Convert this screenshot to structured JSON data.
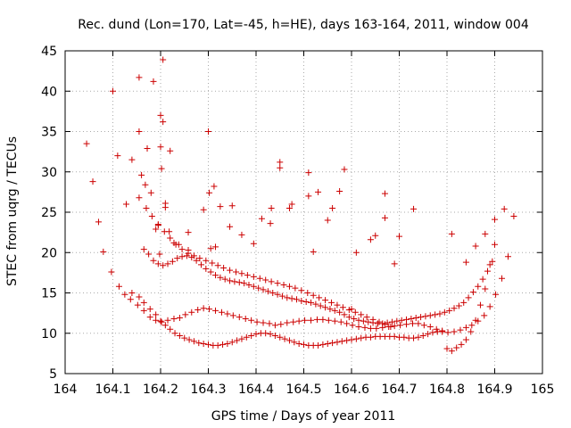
{
  "chart_data": {
    "type": "scatter",
    "title": "Rec. dund (Lon=170, Lat=-45, h=HE), days 163-164, 2011, window 004",
    "xlabel": "GPS time / Days of year 2011",
    "ylabel": "STEC from uqrg / TECUs",
    "xlim": [
      164,
      165
    ],
    "ylim": [
      5,
      45
    ],
    "xticks": [
      "164",
      "164.1",
      "164.2",
      "164.3",
      "164.4",
      "164.5",
      "164.6",
      "164.7",
      "164.8",
      "164.9",
      "165"
    ],
    "yticks": [
      "5",
      "10",
      "15",
      "20",
      "25",
      "30",
      "35",
      "40",
      "45"
    ],
    "grid": true,
    "marker": "+",
    "color": "#cc0000",
    "series": [
      {
        "x": [
          164.045,
          164.058,
          164.07,
          164.08,
          164.097,
          164.1,
          164.11,
          164.128,
          164.14,
          164.155,
          164.172,
          164.185,
          164.2,
          164.205,
          164.113,
          164.125,
          164.137,
          164.152,
          164.165,
          164.178,
          164.19,
          164.202,
          164.215,
          164.228,
          164.24,
          164.252,
          164.265,
          164.278,
          164.29,
          164.302,
          164.315,
          164.328,
          164.34,
          164.352,
          164.365,
          164.378,
          164.39,
          164.402,
          164.415,
          164.428,
          164.44,
          164.452,
          164.465,
          164.478,
          164.49,
          164.502,
          164.515,
          164.528,
          164.54,
          164.552,
          164.565,
          164.578,
          164.59,
          164.602,
          164.615,
          164.628,
          164.64,
          164.652,
          164.665,
          164.678,
          164.69,
          164.702,
          164.715,
          164.728,
          164.74,
          164.752,
          164.765,
          164.778,
          164.79,
          164.802,
          164.815,
          164.828,
          164.84,
          164.852,
          164.865,
          164.878,
          164.89,
          164.902,
          164.915,
          164.928,
          164.94,
          164.14,
          164.155,
          164.165,
          164.178,
          164.19,
          164.2,
          164.21,
          164.22,
          164.23,
          164.24,
          164.25,
          164.26,
          164.27,
          164.28,
          164.29,
          164.3,
          164.31,
          164.32,
          164.33,
          164.34,
          164.35,
          164.36,
          164.37,
          164.38,
          164.39,
          164.4,
          164.41,
          164.42,
          164.43,
          164.44,
          164.45,
          164.46,
          164.47,
          164.48,
          164.49,
          164.5,
          164.51,
          164.52,
          164.53,
          164.54,
          164.55,
          164.56,
          164.57,
          164.58,
          164.59,
          164.6,
          164.61,
          164.62,
          164.63,
          164.64,
          164.65,
          164.66,
          164.67,
          164.68,
          164.69,
          164.7,
          164.71,
          164.72,
          164.73,
          164.74,
          164.75,
          164.76,
          164.77,
          164.78,
          164.79,
          164.8,
          164.81,
          164.82,
          164.83,
          164.84,
          164.85,
          164.86,
          164.87,
          164.88,
          164.89,
          164.9,
          164.165,
          164.175,
          164.185,
          164.195,
          164.205,
          164.215,
          164.225,
          164.235,
          164.245,
          164.255,
          164.265,
          164.275,
          164.285,
          164.295,
          164.305,
          164.315,
          164.325,
          164.335,
          164.345,
          164.355,
          164.365,
          164.375,
          164.385,
          164.395,
          164.405,
          164.415,
          164.425,
          164.435,
          164.445,
          164.455,
          164.465,
          164.475,
          164.485,
          164.495,
          164.505,
          164.515,
          164.525,
          164.535,
          164.545,
          164.555,
          164.565,
          164.575,
          164.585,
          164.595,
          164.605,
          164.615,
          164.625,
          164.635,
          164.645,
          164.655,
          164.665,
          164.675,
          164.685,
          164.695,
          164.705,
          164.715,
          164.725,
          164.735,
          164.745,
          164.755,
          164.765,
          164.775,
          164.785,
          164.795,
          164.805,
          164.815,
          164.825,
          164.835,
          164.845,
          164.855,
          164.865,
          164.875,
          164.885,
          164.895,
          164.155,
          164.17,
          164.182,
          164.195,
          164.208,
          164.22,
          164.232,
          164.245,
          164.258,
          164.27,
          164.282,
          164.295,
          164.308,
          164.32,
          164.332,
          164.345,
          164.358,
          164.37,
          164.382,
          164.395,
          164.408,
          164.42,
          164.432,
          164.445,
          164.458,
          164.47,
          164.482,
          164.495,
          164.508,
          164.52,
          164.532,
          164.545,
          164.558,
          164.57,
          164.582,
          164.595,
          164.608,
          164.62,
          164.632,
          164.645,
          164.658,
          164.67,
          164.682,
          164.155,
          164.16,
          164.168,
          164.18,
          164.19,
          164.198,
          164.205,
          164.21,
          164.218,
          164.228,
          164.238,
          164.258,
          164.29,
          164.302,
          164.312,
          164.325,
          164.345,
          164.37,
          164.395,
          164.412,
          164.432,
          164.45,
          164.475,
          164.51,
          164.53,
          164.56,
          164.575,
          164.585,
          164.61,
          164.64,
          164.67,
          164.7,
          164.73,
          164.81,
          164.84,
          164.86,
          164.88,
          164.9,
          164.92,
          164.2,
          164.202,
          164.195,
          164.21,
          164.22,
          164.258,
          164.3,
          164.305,
          164.315,
          164.35,
          164.43,
          164.45,
          164.47,
          164.51,
          164.52,
          164.55,
          164.6,
          164.65,
          164.67,
          164.69
        ],
        "y": [
          33.5,
          28.8,
          23.8,
          20.1,
          17.6,
          40.0,
          32.0,
          26.0,
          31.5,
          35.0,
          32.9,
          41.2,
          37.0,
          36.2,
          15.8,
          14.8,
          14.2,
          13.5,
          12.8,
          12.0,
          11.6,
          11.4,
          11.6,
          11.8,
          11.9,
          12.3,
          12.6,
          12.9,
          13.1,
          13.0,
          12.8,
          12.6,
          12.4,
          12.2,
          12.0,
          11.8,
          11.6,
          11.4,
          11.3,
          11.2,
          11.0,
          11.1,
          11.3,
          11.4,
          11.5,
          11.6,
          11.6,
          11.7,
          11.7,
          11.6,
          11.5,
          11.4,
          11.2,
          11.0,
          10.8,
          10.7,
          10.6,
          10.6,
          10.7,
          10.8,
          10.9,
          11.0,
          11.1,
          11.2,
          11.2,
          11.0,
          10.8,
          10.5,
          10.3,
          10.1,
          10.2,
          10.4,
          10.7,
          11.0,
          11.5,
          12.2,
          13.3,
          14.8,
          16.8,
          19.5,
          24.5,
          15.0,
          14.5,
          13.8,
          13.0,
          12.3,
          11.5,
          11.0,
          10.5,
          10.0,
          9.7,
          9.4,
          9.2,
          9.0,
          8.8,
          8.7,
          8.6,
          8.5,
          8.5,
          8.6,
          8.7,
          8.9,
          9.1,
          9.3,
          9.5,
          9.7,
          9.9,
          10.0,
          10.0,
          9.9,
          9.7,
          9.5,
          9.3,
          9.1,
          8.9,
          8.7,
          8.6,
          8.5,
          8.5,
          8.5,
          8.6,
          8.7,
          8.8,
          8.9,
          9.0,
          9.1,
          9.2,
          9.3,
          9.4,
          9.5,
          9.5,
          9.6,
          9.6,
          9.6,
          9.6,
          9.6,
          9.5,
          9.5,
          9.4,
          9.4,
          9.5,
          9.7,
          9.9,
          10.1,
          10.2,
          10.2,
          8.1,
          7.8,
          8.2,
          8.6,
          9.2,
          10.2,
          11.6,
          13.5,
          15.5,
          18.5,
          21.0,
          20.4,
          19.8,
          19.0,
          18.6,
          18.4,
          18.6,
          18.9,
          19.3,
          19.5,
          19.6,
          19.4,
          19.0,
          18.5,
          18.0,
          17.6,
          17.2,
          16.9,
          16.7,
          16.5,
          16.4,
          16.3,
          16.2,
          16.0,
          15.8,
          15.6,
          15.4,
          15.2,
          15.0,
          14.8,
          14.6,
          14.4,
          14.3,
          14.2,
          14.0,
          13.9,
          13.8,
          13.6,
          13.4,
          13.2,
          13.0,
          12.8,
          12.6,
          12.3,
          12.0,
          11.8,
          11.6,
          11.5,
          11.4,
          11.3,
          11.2,
          11.2,
          11.3,
          11.4,
          11.5,
          11.6,
          11.7,
          11.8,
          11.9,
          12.0,
          12.1,
          12.2,
          12.3,
          12.4,
          12.6,
          12.8,
          13.1,
          13.4,
          13.8,
          14.4,
          15.1,
          15.8,
          16.7,
          17.7,
          18.9,
          26.8,
          25.5,
          24.5,
          23.4,
          22.6,
          21.8,
          21.0,
          20.4,
          19.9,
          19.6,
          19.3,
          19.0,
          18.7,
          18.4,
          18.1,
          17.8,
          17.6,
          17.4,
          17.2,
          17.0,
          16.8,
          16.6,
          16.4,
          16.2,
          16.0,
          15.8,
          15.6,
          15.3,
          15.0,
          14.7,
          14.4,
          14.1,
          13.8,
          13.5,
          13.2,
          12.9,
          12.6,
          12.3,
          12.0,
          11.7,
          11.4,
          11.1,
          10.8,
          41.7,
          29.6,
          28.4,
          27.4,
          22.9,
          19.8,
          43.9,
          26.1,
          22.6,
          21.2,
          21.0,
          22.5,
          25.3,
          27.4,
          28.2,
          25.7,
          23.2,
          22.2,
          21.1,
          24.2,
          25.5,
          31.2,
          26.0,
          29.9,
          27.5,
          25.5,
          27.6,
          30.3,
          20.0,
          21.6,
          27.3,
          22.0,
          25.4,
          22.3,
          18.8,
          20.8,
          22.3,
          24.1,
          25.4,
          33.1,
          30.4,
          23.5,
          25.6,
          32.6,
          20.3,
          35.0,
          20.5,
          20.7,
          25.8,
          23.6,
          30.5,
          25.5,
          27.0,
          20.1,
          24.0,
          13.0,
          22.1,
          24.3,
          18.6
        ]
      }
    ]
  }
}
